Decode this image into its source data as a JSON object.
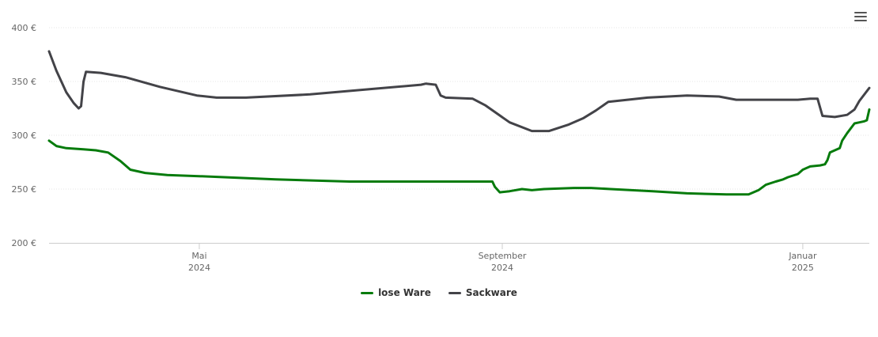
{
  "chart_data": {
    "type": "line",
    "title": "",
    "xlabel": "",
    "ylabel": "",
    "ylim": [
      200,
      400
    ],
    "yticks": [
      "200 €",
      "250 €",
      "300 €",
      "350 €",
      "400 €"
    ],
    "ytick_values": [
      200,
      250,
      300,
      350,
      400
    ],
    "xticks": [
      {
        "date": "2024-05-01",
        "line1": "Mai",
        "line2": "2024"
      },
      {
        "date": "2024-09-01",
        "line1": "September",
        "line2": "2024"
      },
      {
        "date": "2025-01-01",
        "line1": "Januar",
        "line2": "2025"
      }
    ],
    "xlim": [
      "2024-03-01",
      "2025-01-28"
    ],
    "grid": true,
    "legend_position": "bottom-center",
    "series": [
      {
        "name": "lose Ware",
        "color": "#067b0c",
        "points": [
          [
            "2024-03-01",
            295
          ],
          [
            "2024-03-04",
            290
          ],
          [
            "2024-03-08",
            288
          ],
          [
            "2024-03-15",
            287
          ],
          [
            "2024-03-20",
            286
          ],
          [
            "2024-03-25",
            284
          ],
          [
            "2024-03-30",
            276
          ],
          [
            "2024-04-03",
            268
          ],
          [
            "2024-04-09",
            265
          ],
          [
            "2024-04-18",
            263
          ],
          [
            "2024-05-01",
            262
          ],
          [
            "2024-06-01",
            259
          ],
          [
            "2024-07-01",
            257
          ],
          [
            "2024-08-01",
            257
          ],
          [
            "2024-08-28",
            257
          ],
          [
            "2024-08-29",
            252
          ],
          [
            "2024-08-31",
            247
          ],
          [
            "2024-09-04",
            248
          ],
          [
            "2024-09-09",
            250
          ],
          [
            "2024-09-13",
            249
          ],
          [
            "2024-09-18",
            250
          ],
          [
            "2024-09-30",
            251
          ],
          [
            "2024-10-07",
            251
          ],
          [
            "2024-10-15",
            250
          ],
          [
            "2024-11-01",
            248
          ],
          [
            "2024-11-15",
            246
          ],
          [
            "2024-12-01",
            245
          ],
          [
            "2024-12-10",
            245
          ],
          [
            "2024-12-14",
            249
          ],
          [
            "2024-12-17",
            254
          ],
          [
            "2024-12-21",
            257
          ],
          [
            "2024-12-24",
            259
          ],
          [
            "2024-12-26",
            261
          ],
          [
            "2024-12-30",
            264
          ],
          [
            "2025-01-01",
            268
          ],
          [
            "2025-01-04",
            271
          ],
          [
            "2025-01-08",
            272
          ],
          [
            "2025-01-10",
            273
          ],
          [
            "2025-01-11",
            277
          ],
          [
            "2025-01-12",
            284
          ],
          [
            "2025-01-14",
            286
          ],
          [
            "2025-01-16",
            288
          ],
          [
            "2025-01-17",
            295
          ],
          [
            "2025-01-19",
            302
          ],
          [
            "2025-01-22",
            311
          ],
          [
            "2025-01-24",
            312
          ],
          [
            "2025-01-26",
            313
          ],
          [
            "2025-01-27",
            314
          ],
          [
            "2025-01-28",
            324
          ]
        ]
      },
      {
        "name": "Sackware",
        "color": "#434348",
        "points": [
          [
            "2024-03-01",
            378
          ],
          [
            "2024-03-04",
            360
          ],
          [
            "2024-03-08",
            340
          ],
          [
            "2024-03-11",
            330
          ],
          [
            "2024-03-13",
            325
          ],
          [
            "2024-03-14",
            327
          ],
          [
            "2024-03-15",
            350
          ],
          [
            "2024-03-16",
            359
          ],
          [
            "2024-03-22",
            358
          ],
          [
            "2024-04-01",
            354
          ],
          [
            "2024-04-15",
            345
          ],
          [
            "2024-04-30",
            337
          ],
          [
            "2024-05-08",
            335
          ],
          [
            "2024-05-20",
            335
          ],
          [
            "2024-06-15",
            338
          ],
          [
            "2024-07-10",
            343
          ],
          [
            "2024-07-30",
            347
          ],
          [
            "2024-08-01",
            348
          ],
          [
            "2024-08-05",
            347
          ],
          [
            "2024-08-07",
            337
          ],
          [
            "2024-08-09",
            335
          ],
          [
            "2024-08-20",
            334
          ],
          [
            "2024-08-25",
            328
          ],
          [
            "2024-09-04",
            312
          ],
          [
            "2024-09-13",
            304
          ],
          [
            "2024-09-20",
            304
          ],
          [
            "2024-09-28",
            310
          ],
          [
            "2024-10-04",
            316
          ],
          [
            "2024-10-09",
            323
          ],
          [
            "2024-10-14",
            331
          ],
          [
            "2024-10-30",
            335
          ],
          [
            "2024-11-15",
            337
          ],
          [
            "2024-11-28",
            336
          ],
          [
            "2024-12-05",
            333
          ],
          [
            "2024-12-15",
            333
          ],
          [
            "2024-12-30",
            333
          ],
          [
            "2025-01-04",
            334
          ],
          [
            "2025-01-07",
            334
          ],
          [
            "2025-01-09",
            318
          ],
          [
            "2025-01-14",
            317
          ],
          [
            "2025-01-19",
            319
          ],
          [
            "2025-01-22",
            324
          ],
          [
            "2025-01-24",
            332
          ],
          [
            "2025-01-28",
            344
          ]
        ]
      }
    ]
  },
  "ui": {
    "menu_icon": "hamburger-menu-icon",
    "gridline_color": "#e6e6e6",
    "axis_color": "#cccccc",
    "label_color": "#666666"
  }
}
